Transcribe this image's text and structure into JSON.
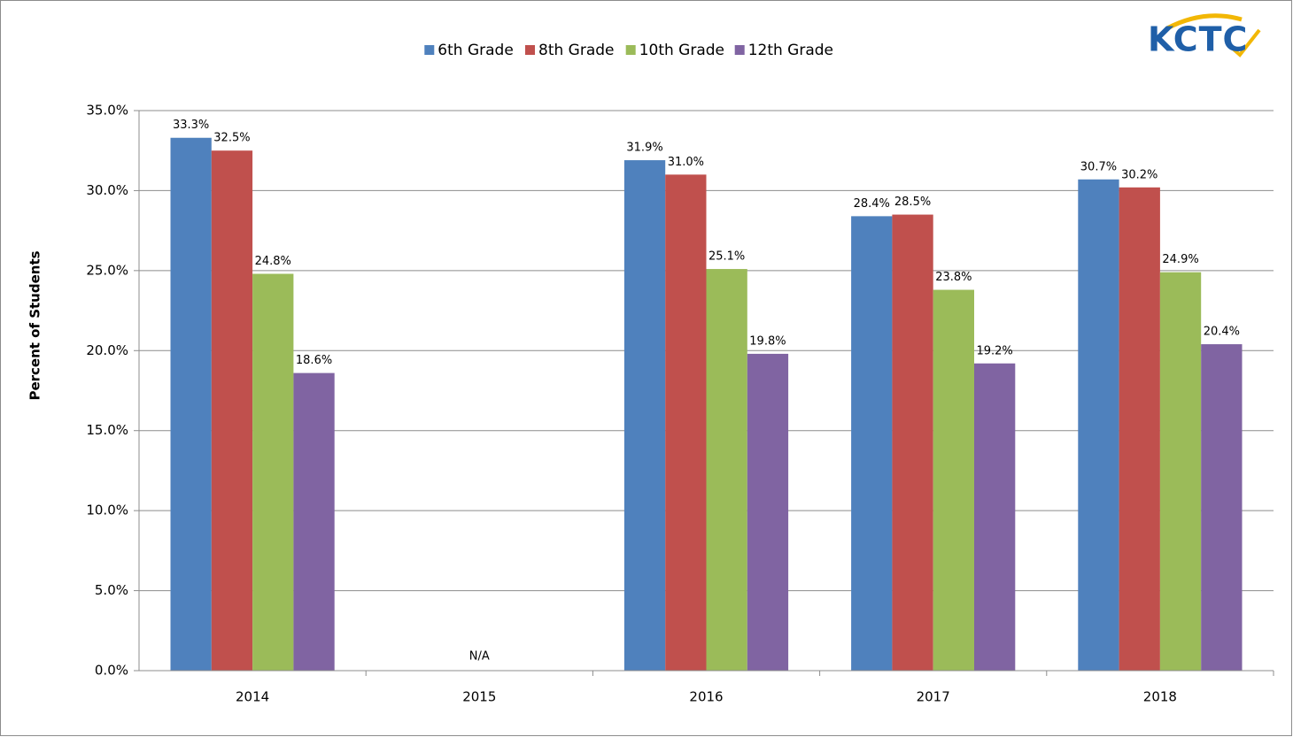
{
  "logo": "KCTC",
  "chart_data": {
    "type": "bar",
    "y_label": "Percent of Students",
    "categories": [
      "2014",
      "2015",
      "2016",
      "2017",
      "2018"
    ],
    "series": [
      {
        "name": "6th Grade",
        "color": "#4f81bd",
        "values": [
          33.3,
          null,
          31.9,
          28.4,
          30.7
        ],
        "value_labels": [
          "33.3%",
          null,
          "31.9%",
          "28.4%",
          "30.7%"
        ]
      },
      {
        "name": "8th Grade",
        "color": "#c0504d",
        "values": [
          32.5,
          null,
          31.0,
          28.5,
          30.2
        ],
        "value_labels": [
          "32.5%",
          null,
          "31.0%",
          "28.5%",
          "30.2%"
        ]
      },
      {
        "name": "10th Grade",
        "color": "#9bbb59",
        "values": [
          24.8,
          null,
          25.1,
          23.8,
          24.9
        ],
        "value_labels": [
          "24.8%",
          null,
          "25.1%",
          "23.8%",
          "24.9%"
        ]
      },
      {
        "name": "12th Grade",
        "color": "#8064a2",
        "values": [
          18.6,
          null,
          19.8,
          19.2,
          20.4
        ],
        "value_labels": [
          "18.6%",
          null,
          "19.8%",
          "19.2%",
          "20.4%"
        ]
      }
    ],
    "annotations": [
      {
        "text": "N/A",
        "x": "2015"
      }
    ],
    "ylim": [
      0,
      35
    ],
    "yticks": [
      {
        "value": 0,
        "label": "0.0%"
      },
      {
        "value": 5,
        "label": "5.0%"
      },
      {
        "value": 10,
        "label": "10.0%"
      },
      {
        "value": 15,
        "label": "15.0%"
      },
      {
        "value": 20,
        "label": "20.0%"
      },
      {
        "value": 25,
        "label": "25.0%"
      },
      {
        "value": 30,
        "label": "30.0%"
      },
      {
        "value": 35,
        "label": "35.0%"
      }
    ],
    "grid": true,
    "legend": "top"
  }
}
